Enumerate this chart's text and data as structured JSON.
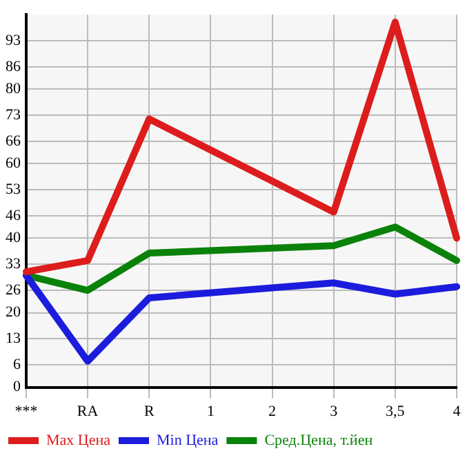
{
  "chart_data": {
    "type": "line",
    "categories": [
      "***",
      "RA",
      "R",
      "1",
      "2",
      "3",
      "3,5",
      "4"
    ],
    "series": [
      {
        "name": "Max Цена",
        "color": "#dd1c1c",
        "values": [
          31,
          34,
          72,
          null,
          null,
          47,
          98,
          40
        ]
      },
      {
        "name": "Min Цена",
        "color": "#1c1cdd",
        "values": [
          30,
          7,
          24,
          null,
          null,
          28,
          25,
          27
        ]
      },
      {
        "name": "Сред.Цена, т.йен",
        "color": "#0a820a",
        "values": [
          30,
          26,
          36,
          null,
          null,
          38,
          43,
          34
        ]
      }
    ],
    "ylim": [
      0,
      100
    ],
    "yticks": [
      0,
      6,
      13,
      20,
      26,
      33,
      40,
      46,
      53,
      60,
      66,
      73,
      80,
      86,
      93
    ],
    "grid": true,
    "legend": "bottom",
    "marker": "none",
    "line_style": "solid"
  }
}
